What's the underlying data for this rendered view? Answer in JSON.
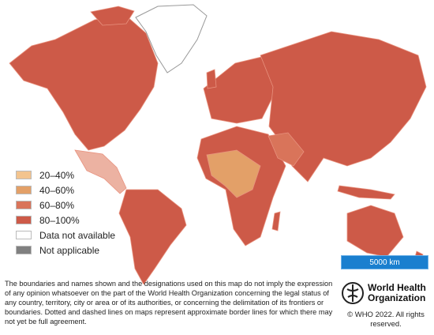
{
  "legend": {
    "items": [
      {
        "label": "20–40%",
        "color": "#f3c48e"
      },
      {
        "label": "40–60%",
        "color": "#e3a068"
      },
      {
        "label": "60–80%",
        "color": "#d9745a"
      },
      {
        "label": "80–100%",
        "color": "#cd5a48"
      },
      {
        "label": "Data not available",
        "color": "#ffffff"
      },
      {
        "label": "Not applicable",
        "color": "#808080"
      }
    ]
  },
  "scale_bar": "5000 km",
  "disclaimer": "The boundaries and names shown and the designations used on this map do not imply the expression of any opinion whatsoever on the part of the World Health Organization concerning the legal status of any country, territory, city or area or of its authorities, or concerning the delimitation of its frontiers or boundaries. Dotted and dashed lines on maps represent approximate border lines for which there may not yet be full agreement.",
  "logo": {
    "line1": "World Health",
    "line2": "Organization"
  },
  "copyright": "© WHO 2022. All rights reserved."
}
